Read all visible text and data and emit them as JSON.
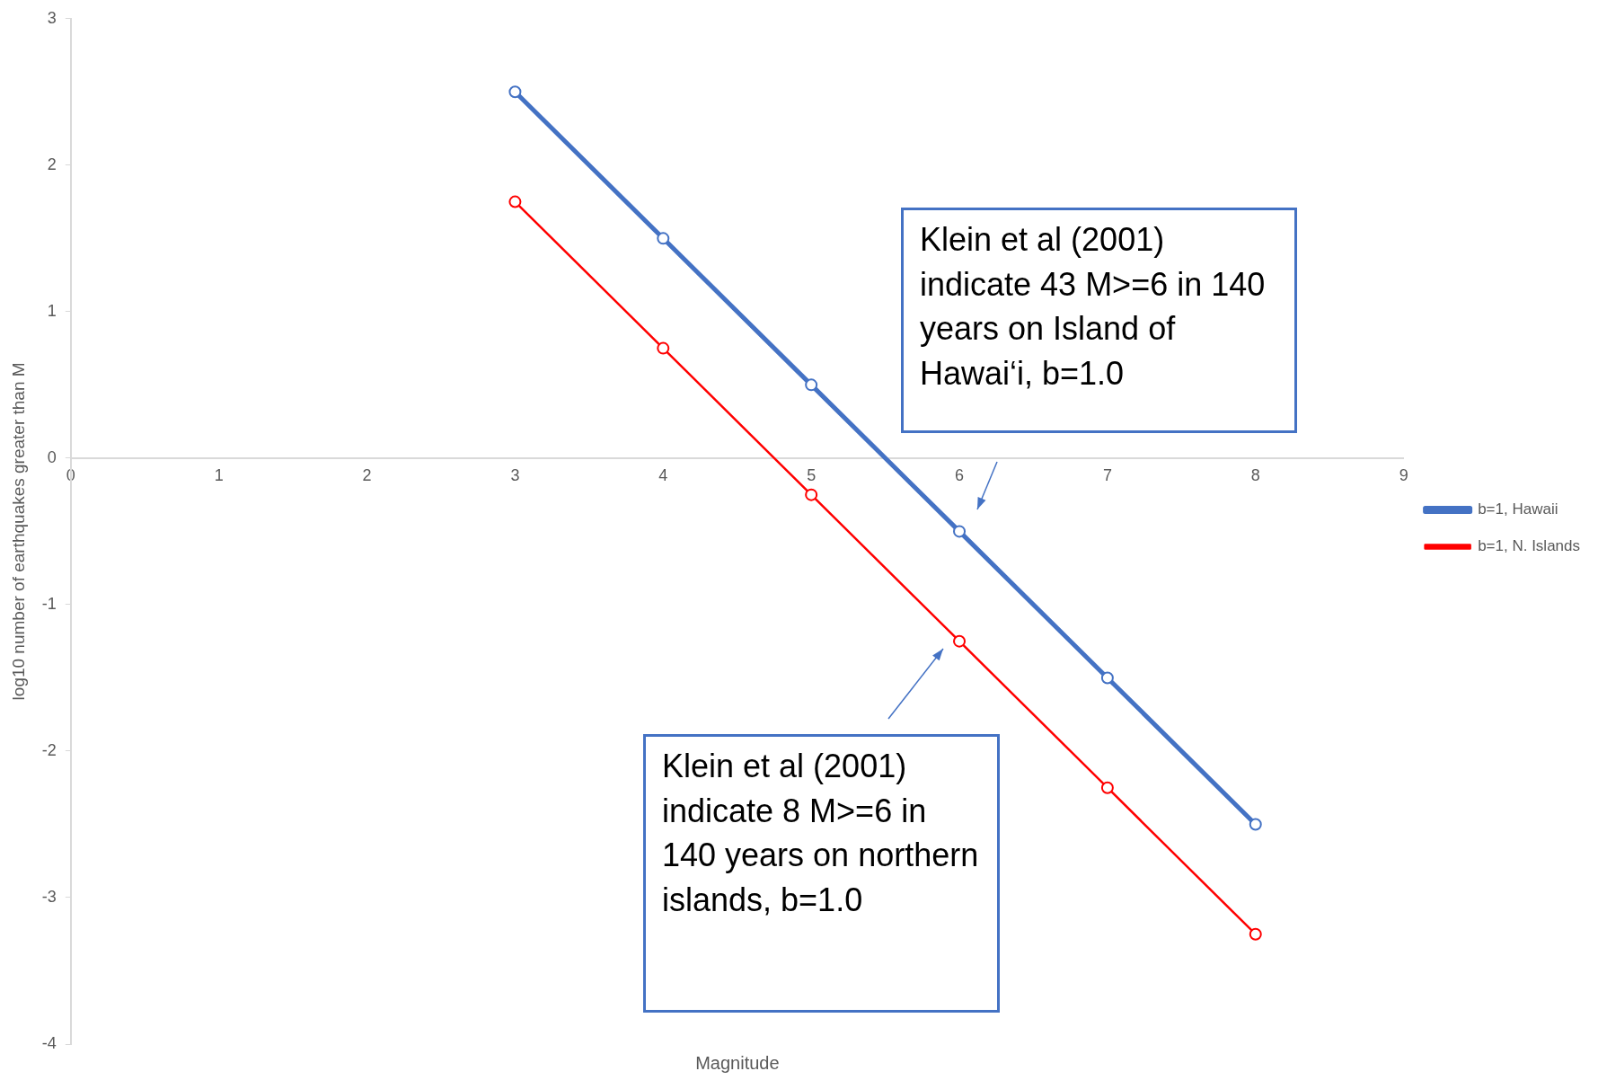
{
  "chart_data": {
    "type": "line",
    "xlabel": "Magnitude",
    "ylabel": "log10 number of earthquakes greater than M",
    "x": [
      3,
      4,
      5,
      6,
      7,
      8
    ],
    "series": [
      {
        "name": "b=1, Hawaii",
        "color": "#4472c4",
        "values": [
          2.5,
          1.5,
          0.5,
          -0.5,
          -1.5,
          -2.5
        ]
      },
      {
        "name": "b=1, N. Islands",
        "color": "#ff0000",
        "values": [
          1.75,
          0.75,
          -0.25,
          -1.25,
          -2.25,
          -3.25
        ]
      }
    ],
    "xlim": [
      0,
      9
    ],
    "xticks": [
      0,
      1,
      2,
      3,
      4,
      5,
      6,
      7,
      8,
      9
    ],
    "ylim": [
      -4,
      3
    ],
    "yticks": [
      -4,
      -3,
      -2,
      -1,
      0,
      1,
      2,
      3
    ],
    "grid": false,
    "legend": "right",
    "marker": "circle",
    "line_style": "solid",
    "annotations": [
      "Klein et al (2001) indicate 43 M>=6 in 140 years on Island of Hawai‘i, b=1.0",
      "Klein et al (2001) indicate 8 M>=6 in 140 years on northern islands, b=1.0"
    ]
  }
}
